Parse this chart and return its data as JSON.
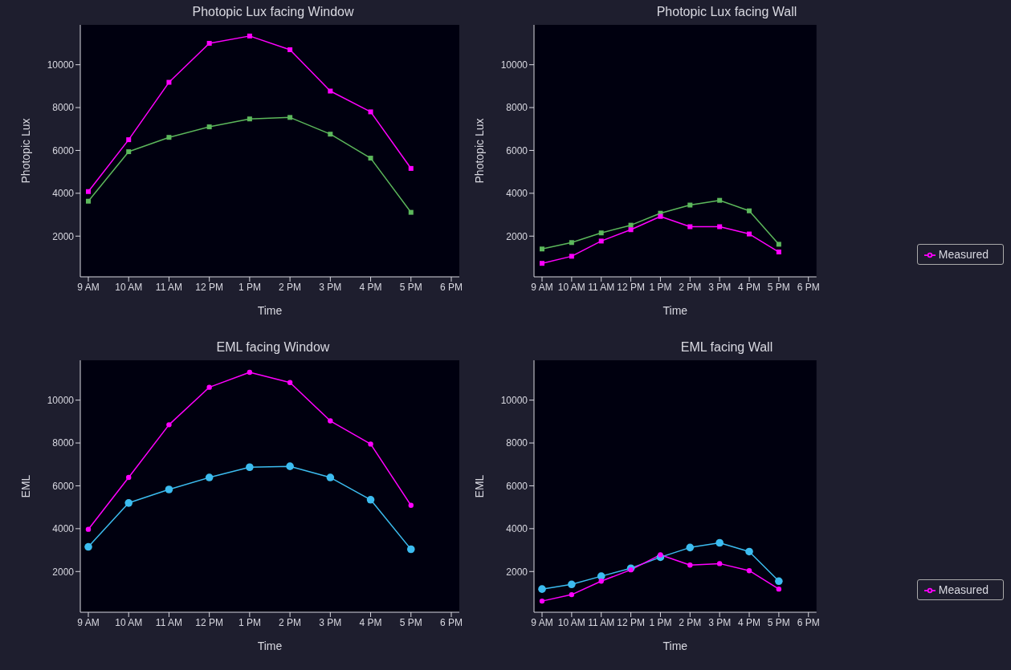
{
  "chart_data": [
    {
      "type": "line",
      "title": "Photopic Lux facing Window",
      "xlabel": "Time",
      "ylabel": "Photopic Lux",
      "categories": [
        "9 AM",
        "10 AM",
        "11 AM",
        "12 PM",
        "1 PM",
        "2 PM",
        "3 PM",
        "4 PM",
        "5 PM",
        "6 PM"
      ],
      "ylim": [
        100,
        11860
      ],
      "yticks": [
        2000,
        4000,
        6000,
        8000,
        10000
      ],
      "marker": "square",
      "grid": false,
      "series": [
        {
          "color": "#5cb85c",
          "values": [
            3630,
            5940,
            6610,
            7100,
            7470,
            7540,
            6760,
            5640,
            3110,
            null
          ]
        },
        {
          "color": "#ff00ff",
          "values": [
            4080,
            6500,
            9180,
            11000,
            11340,
            10700,
            8770,
            7800,
            5160,
            null
          ]
        }
      ]
    },
    {
      "type": "line",
      "title": "Photopic Lux facing Wall",
      "xlabel": "Time",
      "ylabel": "Photopic Lux",
      "categories": [
        "9 AM",
        "10 AM",
        "11 AM",
        "12 PM",
        "1 PM",
        "2 PM",
        "3 PM",
        "4 PM",
        "5 PM",
        "6 PM"
      ],
      "ylim": [
        100,
        11860
      ],
      "yticks": [
        2000,
        4000,
        6000,
        8000,
        10000
      ],
      "marker": "square",
      "legend": "right",
      "grid": false,
      "series": [
        {
          "color": "#5cb85c",
          "values": [
            1400,
            1700,
            2150,
            2510,
            3070,
            3450,
            3670,
            3180,
            1620,
            null
          ]
        },
        {
          "name": "Measured",
          "color": "#ff00ff",
          "values": [
            730,
            1060,
            1770,
            2300,
            2920,
            2440,
            2440,
            2100,
            1260,
            null
          ]
        }
      ]
    },
    {
      "type": "line",
      "title": "EML facing Window",
      "xlabel": "Time",
      "ylabel": "EML",
      "categories": [
        "9 AM",
        "10 AM",
        "11 AM",
        "12 PM",
        "1 PM",
        "2 PM",
        "3 PM",
        "4 PM",
        "5 PM",
        "6 PM"
      ],
      "ylim": [
        100,
        11860
      ],
      "yticks": [
        2000,
        4000,
        6000,
        8000,
        10000
      ],
      "marker": "circle",
      "grid": false,
      "series": [
        {
          "color": "#3cbcf0",
          "values": [
            3150,
            5200,
            5830,
            6390,
            6870,
            6910,
            6390,
            5350,
            3040,
            null
          ]
        },
        {
          "color": "#ff00ff",
          "values": [
            3970,
            6390,
            8850,
            10600,
            11300,
            10820,
            9030,
            7950,
            5090,
            null
          ]
        }
      ]
    },
    {
      "type": "line",
      "title": "EML facing Wall",
      "xlabel": "Time",
      "ylabel": "EML",
      "categories": [
        "9 AM",
        "10 AM",
        "11 AM",
        "12 PM",
        "1 PM",
        "2 PM",
        "3 PM",
        "4 PM",
        "5 PM",
        "6 PM"
      ],
      "ylim": [
        100,
        11860
      ],
      "yticks": [
        2000,
        4000,
        6000,
        8000,
        10000
      ],
      "marker": "circle",
      "legend": "right",
      "grid": false,
      "series": [
        {
          "color": "#3cbcf0",
          "values": [
            1180,
            1400,
            1780,
            2150,
            2670,
            3120,
            3340,
            2930,
            1550,
            null
          ]
        },
        {
          "name": "Measured",
          "color": "#ff00ff",
          "values": [
            620,
            920,
            1550,
            2080,
            2780,
            2300,
            2370,
            2040,
            1180,
            null
          ]
        }
      ]
    }
  ]
}
